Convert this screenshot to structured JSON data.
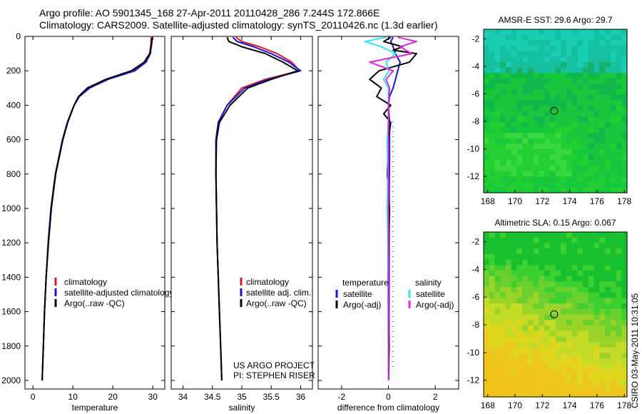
{
  "header": {
    "line1": "Argo profile: AO 5901345_168 27-Apr-2011 20110428_286 7.244S 172.866E",
    "line2": "Climatology: CARS2009. Satellite-adjusted climatology: synTS_20110426.nc (1.3d earlier)"
  },
  "footer_stamp": "CSIRO 03-May-2011 10:31:05",
  "colors": {
    "red": "#e8141e",
    "blue": "#1414dc",
    "black": "#000000",
    "cyan": "#28e8f0",
    "magenta": "#e028e0"
  },
  "chart_data": [
    {
      "type": "line",
      "id": "temperature",
      "xlabel": "temperature",
      "ylabel": "",
      "xlim": [
        -2,
        33
      ],
      "ylim": [
        2050,
        0
      ],
      "xticks": [
        0,
        10,
        20,
        30
      ],
      "yticks": [
        0,
        200,
        400,
        600,
        800,
        1000,
        1200,
        1400,
        1600,
        1800,
        2000
      ],
      "legend": [
        "climatology",
        "satellite-adjusted climatology",
        "Argo(..raw -QC)"
      ],
      "series": [
        {
          "name": "climatology",
          "color": "red",
          "depth": [
            5,
            50,
            100,
            150,
            200,
            250,
            300,
            350,
            400,
            500,
            600,
            800,
            1000,
            1200,
            1400,
            1600,
            1800,
            2000
          ],
          "values": [
            29.6,
            29.5,
            29.2,
            27.8,
            25.0,
            18.5,
            14.0,
            11.5,
            10.3,
            8.6,
            7.4,
            5.6,
            4.5,
            3.8,
            3.3,
            2.9,
            2.6,
            2.3
          ]
        },
        {
          "name": "satellite-adjusted climatology",
          "color": "blue",
          "depth": [
            5,
            50,
            100,
            150,
            200,
            250,
            300,
            350,
            400,
            500,
            600,
            800,
            1000,
            1200,
            1400,
            1600,
            1800,
            2000
          ],
          "values": [
            29.8,
            29.6,
            29.4,
            28.3,
            25.5,
            18.8,
            14.2,
            11.6,
            10.3,
            8.6,
            7.4,
            5.6,
            4.5,
            3.8,
            3.3,
            2.9,
            2.6,
            2.3
          ]
        },
        {
          "name": "Argo(..raw -QC)",
          "color": "black",
          "depth": [
            5,
            50,
            100,
            150,
            200,
            250,
            300,
            350,
            400,
            500,
            600,
            800,
            1000,
            1200,
            1400,
            1600,
            1800,
            2000
          ],
          "values": [
            29.9,
            29.7,
            29.3,
            27.9,
            24.6,
            18.2,
            13.6,
            11.4,
            10.3,
            8.7,
            7.5,
            5.7,
            4.6,
            3.9,
            3.3,
            2.9,
            2.6,
            2.3
          ]
        }
      ]
    },
    {
      "type": "line",
      "id": "salinity",
      "xlabel": "salinity",
      "ylabel": "",
      "xlim": [
        33.8,
        36.2
      ],
      "ylim": [
        2050,
        0
      ],
      "xticks": [
        34,
        34.5,
        35,
        35.5,
        36
      ],
      "xticklabels": [
        "34",
        "34.5",
        "35",
        "35.5",
        "36"
      ],
      "legend": [
        "climatology",
        "satellite adj. clim.",
        "Argo(..raw -QC)"
      ],
      "annotations": [
        "US ARGO PROJECT",
        "PI: STEPHEN RISER"
      ],
      "series": [
        {
          "name": "climatology",
          "color": "red",
          "depth": [
            5,
            30,
            60,
            100,
            150,
            200,
            250,
            300,
            400,
            500,
            600,
            800,
            1000,
            1200,
            1400,
            1600,
            1800,
            2000
          ],
          "values": [
            34.9,
            35.0,
            35.3,
            35.6,
            35.85,
            35.98,
            35.4,
            35.0,
            34.75,
            34.6,
            34.56,
            34.56,
            34.57,
            34.58,
            34.6,
            34.62,
            34.64,
            34.66
          ]
        },
        {
          "name": "satellite adj. clim.",
          "color": "blue",
          "depth": [
            5,
            30,
            60,
            100,
            150,
            200,
            250,
            300,
            400,
            500,
            600,
            800,
            1000,
            1200,
            1400,
            1600,
            1800,
            2000
          ],
          "values": [
            34.85,
            34.92,
            35.2,
            35.5,
            35.8,
            36.0,
            35.45,
            35.05,
            34.75,
            34.6,
            34.56,
            34.56,
            34.57,
            34.58,
            34.6,
            34.62,
            34.64,
            34.66
          ]
        },
        {
          "name": "Argo(..raw -QC)",
          "color": "black",
          "depth": [
            5,
            30,
            60,
            100,
            150,
            200,
            250,
            300,
            400,
            500,
            600,
            800,
            1000,
            1200,
            1400,
            1600,
            1800,
            2000
          ],
          "values": [
            34.75,
            34.78,
            35.0,
            35.4,
            35.7,
            35.95,
            35.5,
            35.1,
            34.8,
            34.62,
            34.57,
            34.56,
            34.57,
            34.58,
            34.6,
            34.62,
            34.64,
            34.66
          ]
        }
      ]
    },
    {
      "type": "line",
      "id": "difference",
      "xlabel": "difference from climatology",
      "ylabel": "",
      "xlim": [
        -3,
        3
      ],
      "ylim": [
        2050,
        0
      ],
      "xticks": [
        -2,
        0,
        2
      ],
      "legend_headers": [
        "temperature",
        "salinity"
      ],
      "legend": [
        "satellite",
        "Argo(-adj)",
        "satellite",
        "Argo(-adj)"
      ],
      "series": [
        {
          "name": "satellite",
          "group": "temperature",
          "color": "blue",
          "depth": [
            5,
            30,
            60,
            100,
            150,
            200,
            250,
            300,
            350,
            400,
            500,
            700,
            1000,
            1400,
            1800,
            2000
          ],
          "values": [
            0.2,
            0.1,
            0.2,
            0.3,
            0.5,
            0.4,
            0.3,
            0.2,
            0.05,
            0.0,
            0.05,
            0.05,
            0.03,
            0.03,
            0.02,
            0.01
          ]
        },
        {
          "name": "Argo(-adj)",
          "group": "temperature",
          "color": "black",
          "depth": [
            5,
            30,
            60,
            80,
            100,
            150,
            200,
            250,
            300,
            350,
            400,
            450,
            500,
            600,
            800,
            1000,
            1200,
            1400,
            1600,
            1800,
            2000
          ],
          "values": [
            0.1,
            -0.2,
            0.6,
            0.2,
            1.2,
            0.9,
            -0.4,
            -0.8,
            -0.3,
            -0.5,
            0.1,
            -0.2,
            0.1,
            0.0,
            -0.05,
            0.05,
            0.02,
            -0.02,
            0.0,
            0.03,
            0.0
          ]
        },
        {
          "name": "satellite",
          "group": "salinity",
          "color": "cyan",
          "depth": [
            5,
            30,
            60,
            100,
            150,
            200,
            250,
            300,
            400,
            500,
            600,
            800,
            1000,
            1200,
            1400,
            1600,
            1800,
            2000
          ],
          "values": [
            -0.1,
            -1.0,
            -0.3,
            0.3,
            -0.1,
            0.02,
            -0.2,
            0.0,
            0.0,
            0.0,
            -0.05,
            -0.02,
            -0.05,
            -0.02,
            -0.02,
            -0.01,
            0.0,
            0.0
          ]
        },
        {
          "name": "Argo(-adj)",
          "group": "salinity",
          "color": "magenta",
          "depth": [
            5,
            30,
            60,
            100,
            150,
            200,
            250,
            300,
            400,
            500,
            600,
            800,
            1000,
            1200,
            1400,
            1600,
            1800,
            2000
          ],
          "values": [
            0.4,
            1.2,
            0.5,
            1.0,
            -0.8,
            0.2,
            -0.1,
            0.05,
            0.0,
            0.0,
            0.0,
            0.0,
            0.0,
            0.0,
            0.0,
            0.0,
            0.0,
            0.0
          ]
        }
      ]
    },
    {
      "type": "heatmap",
      "id": "sst-map",
      "title": "AMSR-E SST: 29.6 Argo: 29.7",
      "xlim": [
        167.7,
        178.2
      ],
      "ylim": [
        -13.2,
        -1.3
      ],
      "xticks": [
        168,
        170,
        172,
        174,
        176,
        178
      ],
      "yticks": [
        -2,
        -4,
        -6,
        -8,
        -10,
        -12
      ],
      "marker": {
        "lon": 172.866,
        "lat": -7.244
      },
      "palette": [
        "#0ba858",
        "#10b84c",
        "#18c83c",
        "#22d032",
        "#3cd840",
        "#17b06a",
        "#15c0a0",
        "#18cdb0"
      ]
    },
    {
      "type": "heatmap",
      "id": "sla-map",
      "title": "Altimetric SLA: 0.15 Argo: 0.067",
      "xlim": [
        167.7,
        178.2
      ],
      "ylim": [
        -13.2,
        -1.3
      ],
      "xticks": [
        168,
        170,
        172,
        174,
        176,
        178
      ],
      "yticks": [
        -2,
        -4,
        -6,
        -8,
        -10,
        -12
      ],
      "marker": {
        "lon": 172.866,
        "lat": -7.244
      },
      "palette": [
        "#18c030",
        "#3cd030",
        "#6ad030",
        "#9ad428",
        "#c4dc28",
        "#e0d61e",
        "#ecc820",
        "#f0c418"
      ]
    }
  ]
}
